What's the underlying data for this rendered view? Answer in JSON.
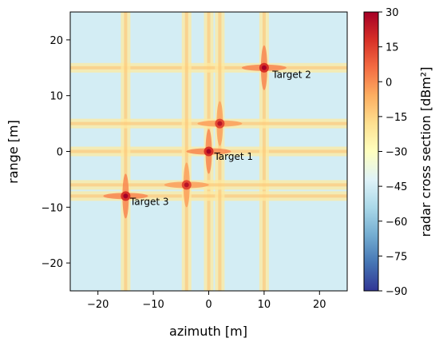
{
  "chart_data": {
    "type": "heatmap",
    "title": "",
    "xlabel": "azimuth [m]",
    "ylabel": "range [m]",
    "xlim": [
      -25,
      25
    ],
    "ylim": [
      -25,
      25
    ],
    "xticks": [
      -20,
      -10,
      0,
      10,
      20
    ],
    "yticks": [
      -20,
      -10,
      0,
      10,
      20
    ],
    "grid": false,
    "colorbar": {
      "label": "radar cross section [dBm²]",
      "range": [
        -90,
        30
      ],
      "ticks": [
        30,
        15,
        0,
        -15,
        -30,
        -45,
        -60,
        -75,
        -90
      ],
      "colormap": "RdYlBu_r",
      "colors": [
        "#313695",
        "#4575b4",
        "#74add1",
        "#abd9e9",
        "#e0f3f8",
        "#ffffbf",
        "#fee090",
        "#fdae61",
        "#f46d43",
        "#d73027",
        "#a50026"
      ]
    },
    "background_level": -45,
    "peaks": [
      {
        "x": 0,
        "y": 0,
        "value": 30
      },
      {
        "x": 10,
        "y": 15,
        "value": 30
      },
      {
        "x": -15,
        "y": -8,
        "value": 30
      },
      {
        "x": 2,
        "y": 5,
        "value": 25
      },
      {
        "x": -4,
        "y": -6,
        "value": 25
      }
    ],
    "annotations": [
      {
        "text": "Target 1",
        "x": 1,
        "y": -1.5
      },
      {
        "text": "Target 2",
        "x": 11.5,
        "y": 13.2
      },
      {
        "text": "Target 3",
        "x": -14.2,
        "y": -9.6
      }
    ]
  }
}
